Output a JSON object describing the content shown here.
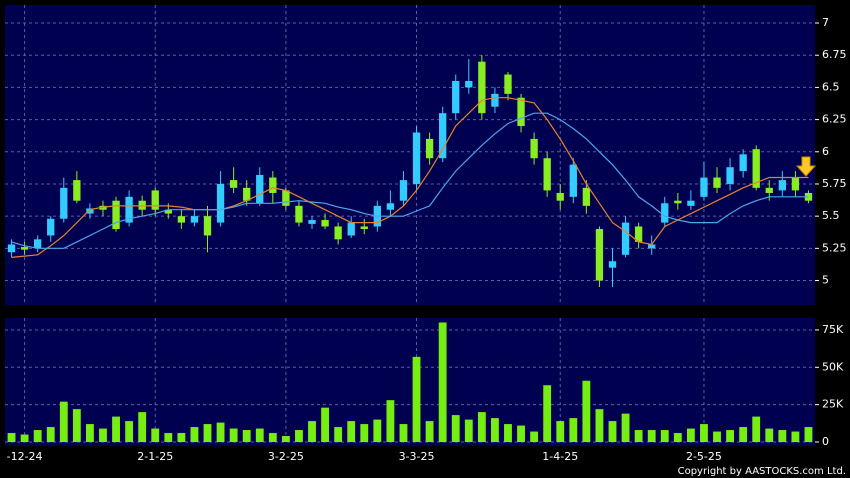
{
  "chart_data": [
    {
      "type": "candlestick",
      "open": [
        5.22,
        5.26,
        5.25,
        5.35,
        5.48,
        5.78,
        5.52,
        5.58,
        5.62,
        5.45,
        5.62,
        5.7,
        5.55,
        5.5,
        5.45,
        5.5,
        5.45,
        5.78,
        5.72,
        5.6,
        5.8,
        5.7,
        5.58,
        5.44,
        5.47,
        5.42,
        5.35,
        5.42,
        5.42,
        5.55,
        5.62,
        5.75,
        6.1,
        5.95,
        6.3,
        6.5,
        6.7,
        6.35,
        6.6,
        6.42,
        6.1,
        5.95,
        5.68,
        5.65,
        5.72,
        5.4,
        5.1,
        5.2,
        5.42,
        5.25,
        5.45,
        5.62,
        5.58,
        5.65,
        5.8,
        5.75,
        5.85,
        6.02,
        5.72,
        5.7,
        5.8,
        5.68
      ],
      "high": [
        5.32,
        5.3,
        5.35,
        5.5,
        5.8,
        5.85,
        5.6,
        5.62,
        5.65,
        5.7,
        5.66,
        5.72,
        5.6,
        5.55,
        5.55,
        5.58,
        5.85,
        5.88,
        5.78,
        5.88,
        5.85,
        5.72,
        5.62,
        5.5,
        5.52,
        5.45,
        5.5,
        5.48,
        5.62,
        5.7,
        5.85,
        6.2,
        6.15,
        6.35,
        6.6,
        6.72,
        6.75,
        6.5,
        6.62,
        6.45,
        6.15,
        6.0,
        5.75,
        5.95,
        5.78,
        5.42,
        5.25,
        5.5,
        5.45,
        5.35,
        5.65,
        5.68,
        5.7,
        5.92,
        5.88,
        5.95,
        6.02,
        6.05,
        5.78,
        5.85,
        5.85,
        5.7
      ],
      "low": [
        5.18,
        5.2,
        5.22,
        5.3,
        5.45,
        5.6,
        5.48,
        5.5,
        5.38,
        5.42,
        5.5,
        5.5,
        5.48,
        5.4,
        5.42,
        5.22,
        5.42,
        5.68,
        5.58,
        5.58,
        5.6,
        5.55,
        5.42,
        5.4,
        5.4,
        5.28,
        5.33,
        5.36,
        5.38,
        5.5,
        5.58,
        5.7,
        5.9,
        5.92,
        6.25,
        6.45,
        6.25,
        6.3,
        6.4,
        6.15,
        5.9,
        5.65,
        5.55,
        5.6,
        5.52,
        4.95,
        4.95,
        5.18,
        5.25,
        5.2,
        5.42,
        5.55,
        5.55,
        5.62,
        5.68,
        5.7,
        5.8,
        5.7,
        5.62,
        5.65,
        5.65,
        5.6
      ],
      "close": [
        5.28,
        5.24,
        5.32,
        5.48,
        5.72,
        5.62,
        5.56,
        5.55,
        5.4,
        5.65,
        5.55,
        5.55,
        5.52,
        5.45,
        5.5,
        5.35,
        5.75,
        5.72,
        5.62,
        5.82,
        5.68,
        5.58,
        5.45,
        5.47,
        5.42,
        5.32,
        5.45,
        5.4,
        5.58,
        5.6,
        5.78,
        6.15,
        5.95,
        6.3,
        6.55,
        6.55,
        6.3,
        6.45,
        6.45,
        6.2,
        5.95,
        5.7,
        5.62,
        5.9,
        5.58,
        5.0,
        5.15,
        5.45,
        5.3,
        5.28,
        5.6,
        5.6,
        5.62,
        5.8,
        5.72,
        5.88,
        5.98,
        5.72,
        5.68,
        5.78,
        5.7,
        5.62
      ],
      "up_color": "#33ccff",
      "down_color": "#88ee22",
      "lines": [
        {
          "color": "#e8822a",
          "values": [
            5.18,
            5.19,
            5.2,
            5.27,
            5.35,
            5.45,
            5.55,
            5.57,
            5.58,
            5.58,
            5.58,
            5.58,
            5.58,
            5.57,
            5.55,
            5.55,
            5.55,
            5.58,
            5.62,
            5.67,
            5.72,
            5.7,
            5.65,
            5.6,
            5.55,
            5.5,
            5.45,
            5.45,
            5.45,
            5.5,
            5.58,
            5.7,
            5.85,
            6.02,
            6.2,
            6.3,
            6.4,
            6.42,
            6.42,
            6.4,
            6.38,
            6.25,
            6.1,
            5.93,
            5.75,
            5.6,
            5.45,
            5.38,
            5.3,
            5.28,
            5.42,
            5.47,
            5.52,
            5.57,
            5.62,
            5.67,
            5.72,
            5.76,
            5.8,
            5.8,
            5.8,
            5.8
          ]
        },
        {
          "color": "#4aa8ee",
          "values": [
            5.3,
            5.27,
            5.25,
            5.25,
            5.25,
            5.3,
            5.35,
            5.4,
            5.45,
            5.48,
            5.5,
            5.52,
            5.55,
            5.55,
            5.55,
            5.55,
            5.55,
            5.57,
            5.6,
            5.6,
            5.6,
            5.61,
            5.62,
            5.61,
            5.6,
            5.57,
            5.55,
            5.52,
            5.5,
            5.5,
            5.5,
            5.54,
            5.58,
            5.72,
            5.85,
            5.95,
            6.05,
            6.14,
            6.22,
            6.26,
            6.3,
            6.3,
            6.25,
            6.18,
            6.1,
            6.0,
            5.9,
            5.78,
            5.65,
            5.58,
            5.5,
            5.47,
            5.45,
            5.45,
            5.45,
            5.52,
            5.58,
            5.62,
            5.65,
            5.65,
            5.65,
            5.65
          ]
        }
      ],
      "ylim": [
        4.81,
        7.14
      ],
      "yticks": [
        5,
        5.25,
        5.5,
        5.75,
        6,
        6.25,
        6.5,
        6.75,
        7
      ],
      "grid": true
    },
    {
      "type": "bar",
      "categories": [
        null,
        "-12-24",
        null,
        null,
        null,
        null,
        null,
        null,
        null,
        null,
        null,
        "2-1-25",
        null,
        null,
        null,
        null,
        null,
        null,
        null,
        null,
        null,
        "3-2-25",
        null,
        null,
        null,
        null,
        null,
        null,
        null,
        null,
        null,
        "3-3-25",
        null,
        null,
        null,
        null,
        null,
        null,
        null,
        null,
        null,
        null,
        "1-4-25",
        null,
        null,
        null,
        null,
        null,
        null,
        null,
        null,
        null,
        null,
        "2-5-25",
        null,
        null,
        null,
        null,
        null,
        null,
        null,
        null
      ],
      "values": [
        6000,
        5000,
        8000,
        10000,
        27000,
        22000,
        12000,
        9000,
        17000,
        14000,
        20000,
        9000,
        6000,
        6000,
        10000,
        12000,
        13000,
        9000,
        8000,
        9000,
        6000,
        4000,
        8000,
        14000,
        23000,
        10000,
        14000,
        12000,
        15000,
        28000,
        12000,
        57000,
        14000,
        80000,
        18000,
        15000,
        20000,
        16000,
        12000,
        11000,
        7000,
        38000,
        14000,
        16000,
        41000,
        22000,
        14000,
        19000,
        8000,
        8000,
        8000,
        6000,
        9000,
        12000,
        7000,
        8000,
        10000,
        17000,
        9000,
        8000,
        7000,
        10000
      ],
      "color": "#77ee11",
      "ylim": [
        0,
        83000
      ],
      "yticks": [
        0,
        {
          "value": 25000,
          "label": "25K"
        },
        {
          "value": 50000,
          "label": "50K"
        },
        {
          "value": 75000,
          "label": "75K"
        }
      ],
      "grid": true
    }
  ],
  "footer": {
    "copyright": "Copyright by AASTOCKS.com Ltd."
  }
}
